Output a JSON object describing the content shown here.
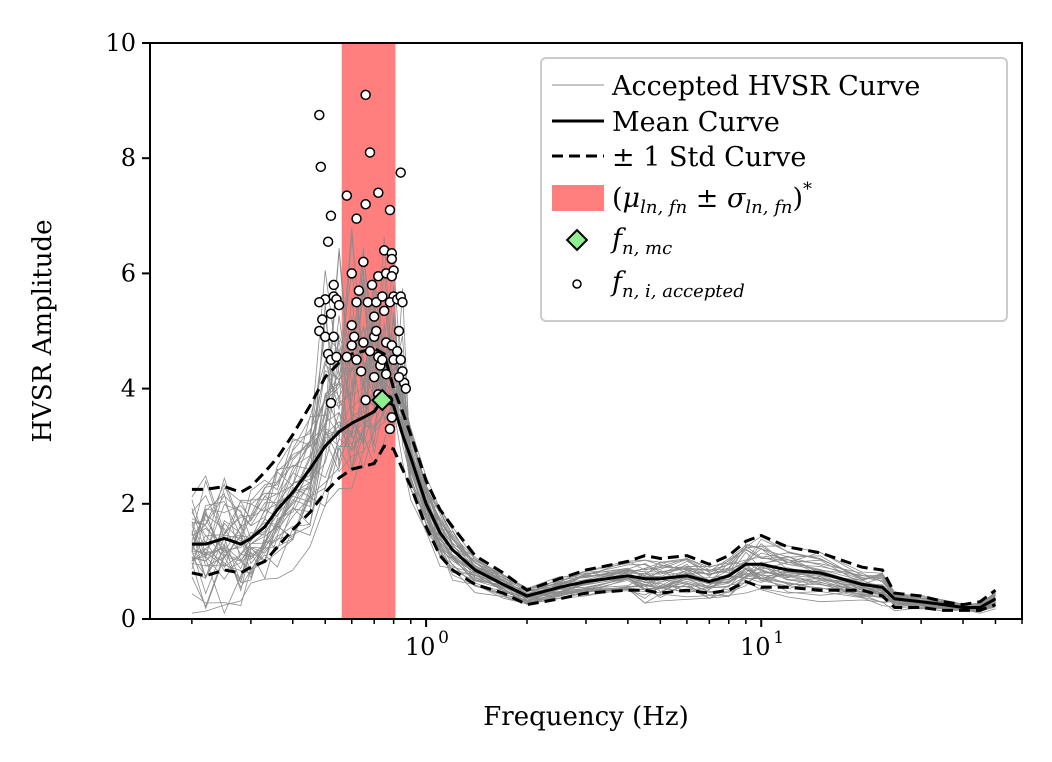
{
  "chart_data": {
    "type": "line",
    "xscale": "log",
    "xlim": [
      0.15,
      60
    ],
    "ylim": [
      0,
      10
    ],
    "xlabel": "Frequency (Hz)",
    "ylabel": "HVSR Amplitude",
    "x_ticks": [
      1,
      10
    ],
    "x_tick_labels_base": [
      "10",
      "10"
    ],
    "x_tick_labels_exp": [
      "0",
      "1"
    ],
    "y_ticks": [
      0,
      2,
      4,
      6,
      8,
      10
    ],
    "y_tick_labels": [
      "0",
      "2",
      "4",
      "6",
      "8",
      "10"
    ],
    "grid": false,
    "legend_position": "top-right",
    "colors": {
      "accepted_curves": "#8c8c8c",
      "mean": "#000000",
      "band": "#ff7f7f",
      "mc_marker": "#90ee90",
      "peak_marker": "#ffffff"
    },
    "legend": [
      {
        "key": "accepted",
        "label": "Accepted HVSR Curve",
        "style": "thin-gray-line"
      },
      {
        "key": "mean",
        "label": "Mean Curve",
        "style": "solid-black"
      },
      {
        "key": "std",
        "label": "± 1 Std Curve",
        "style": "dashed-black"
      },
      {
        "key": "band",
        "label": "(μ_ln,fn ± σ_ln,fn)*",
        "style": "red-patch"
      },
      {
        "key": "mc",
        "label": "f_n,mc",
        "style": "green-diamond"
      },
      {
        "key": "peaks",
        "label": "f_n,i,accepted",
        "style": "white-circle"
      }
    ],
    "band": {
      "x_range": [
        0.56,
        0.81
      ]
    },
    "mean_curve": {
      "x": [
        0.2,
        0.22,
        0.25,
        0.28,
        0.3,
        0.33,
        0.36,
        0.4,
        0.45,
        0.5,
        0.55,
        0.6,
        0.65,
        0.7,
        0.75,
        0.8,
        0.85,
        0.9,
        1.0,
        1.1,
        1.2,
        1.4,
        1.7,
        2.0,
        2.5,
        3.0,
        4.0,
        4.5,
        5.0,
        6.0,
        7.0,
        8.0,
        9.0,
        10.0,
        12.0,
        15.0,
        20.0,
        23.0,
        25.0,
        30.0,
        35.0,
        40.0,
        45.0,
        50.0
      ],
      "y": [
        1.3,
        1.3,
        1.4,
        1.3,
        1.4,
        1.6,
        1.9,
        2.2,
        2.6,
        3.0,
        3.25,
        3.4,
        3.5,
        3.6,
        3.85,
        3.7,
        3.2,
        2.8,
        2.0,
        1.5,
        1.2,
        0.85,
        0.6,
        0.4,
        0.55,
        0.65,
        0.75,
        0.7,
        0.7,
        0.75,
        0.65,
        0.75,
        0.95,
        0.95,
        0.85,
        0.8,
        0.6,
        0.55,
        0.35,
        0.3,
        0.25,
        0.2,
        0.2,
        0.35
      ]
    },
    "std_upper": [
      2.25,
      2.25,
      2.3,
      2.2,
      2.3,
      2.55,
      2.8,
      3.2,
      3.7,
      4.2,
      4.45,
      4.6,
      4.65,
      4.7,
      4.6,
      4.0,
      3.6,
      3.2,
      2.4,
      1.9,
      1.6,
      1.1,
      0.8,
      0.5,
      0.7,
      0.85,
      1.0,
      1.1,
      1.05,
      1.1,
      0.95,
      1.1,
      1.35,
      1.45,
      1.25,
      1.15,
      0.9,
      0.85,
      0.45,
      0.4,
      0.3,
      0.25,
      0.3,
      0.5
    ],
    "std_lower": [
      0.8,
      0.75,
      0.85,
      0.8,
      0.9,
      1.0,
      1.25,
      1.55,
      1.85,
      2.2,
      2.45,
      2.6,
      2.65,
      2.7,
      3.0,
      2.95,
      2.6,
      2.3,
      1.6,
      1.1,
      0.85,
      0.6,
      0.45,
      0.25,
      0.35,
      0.45,
      0.5,
      0.5,
      0.45,
      0.5,
      0.45,
      0.5,
      0.65,
      0.55,
      0.55,
      0.5,
      0.5,
      0.4,
      0.2,
      0.2,
      0.15,
      0.15,
      0.15,
      0.25
    ],
    "mc_point": {
      "x": 0.74,
      "y": 3.8
    },
    "accepted_peaks": [
      [
        0.48,
        8.75
      ],
      [
        0.485,
        7.85
      ],
      [
        0.5,
        5.55
      ],
      [
        0.48,
        5.5
      ],
      [
        0.49,
        5.2
      ],
      [
        0.48,
        5.0
      ],
      [
        0.5,
        4.9
      ],
      [
        0.52,
        7.0
      ],
      [
        0.51,
        6.55
      ],
      [
        0.53,
        5.6
      ],
      [
        0.53,
        5.8
      ],
      [
        0.52,
        5.3
      ],
      [
        0.51,
        4.6
      ],
      [
        0.52,
        4.5
      ],
      [
        0.54,
        4.55
      ],
      [
        0.52,
        3.75
      ],
      [
        0.53,
        4.9
      ],
      [
        0.54,
        5.55
      ],
      [
        0.55,
        5.45
      ],
      [
        0.58,
        7.35
      ],
      [
        0.6,
        6.0
      ],
      [
        0.62,
        5.5
      ],
      [
        0.58,
        4.55
      ],
      [
        0.6,
        5.1
      ],
      [
        0.6,
        4.75
      ],
      [
        0.61,
        4.9
      ],
      [
        0.62,
        4.5
      ],
      [
        0.62,
        6.95
      ],
      [
        0.63,
        5.7
      ],
      [
        0.64,
        4.3
      ],
      [
        0.65,
        4.8
      ],
      [
        0.66,
        9.1
      ],
      [
        0.66,
        7.2
      ],
      [
        0.65,
        6.2
      ],
      [
        0.68,
        8.1
      ],
      [
        0.67,
        5.5
      ],
      [
        0.68,
        4.65
      ],
      [
        0.66,
        3.8
      ],
      [
        0.7,
        5.25
      ],
      [
        0.69,
        5.8
      ],
      [
        0.7,
        4.9
      ],
      [
        0.72,
        7.4
      ],
      [
        0.72,
        5.95
      ],
      [
        0.71,
        5.0
      ],
      [
        0.72,
        4.55
      ],
      [
        0.73,
        4.4
      ],
      [
        0.72,
        3.9
      ],
      [
        0.71,
        5.5
      ],
      [
        0.7,
        4.2
      ],
      [
        0.75,
        6.4
      ],
      [
        0.74,
        5.6
      ],
      [
        0.76,
        6.0
      ],
      [
        0.75,
        5.35
      ],
      [
        0.76,
        4.8
      ],
      [
        0.74,
        4.5
      ],
      [
        0.76,
        4.25
      ],
      [
        0.77,
        3.8
      ],
      [
        0.78,
        7.1
      ],
      [
        0.79,
        6.35
      ],
      [
        0.79,
        6.25
      ],
      [
        0.8,
        6.05
      ],
      [
        0.79,
        5.95
      ],
      [
        0.8,
        5.6
      ],
      [
        0.78,
        5.5
      ],
      [
        0.79,
        4.75
      ],
      [
        0.8,
        4.5
      ],
      [
        0.79,
        3.5
      ],
      [
        0.78,
        3.3
      ],
      [
        0.84,
        7.75
      ],
      [
        0.82,
        5.55
      ],
      [
        0.84,
        5.6
      ],
      [
        0.85,
        5.5
      ],
      [
        0.83,
        5.0
      ],
      [
        0.82,
        4.65
      ],
      [
        0.85,
        4.3
      ],
      [
        0.86,
        4.1
      ],
      [
        0.84,
        4.5
      ],
      [
        0.83,
        4.2
      ],
      [
        0.87,
        4.0
      ]
    ],
    "accepted_curve_count": 40
  }
}
